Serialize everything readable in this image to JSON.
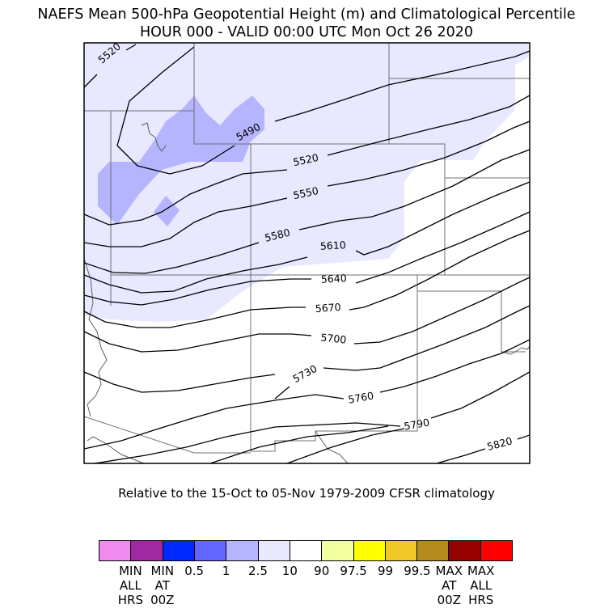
{
  "title": {
    "line1": "NAEFS Mean 500-hPa Geopotential Height (m) and Climatological Percentile",
    "line2": "HOUR 000 - VALID 00:00 UTC Mon Oct 26 2020"
  },
  "subtitle": "Relative to the 15-Oct to 05-Nov 1979-2009 CFSR climatology",
  "map": {
    "shading_colors": {
      "p2_5": "#b4b4ff",
      "p10": "#e8e8ff"
    },
    "contours": [
      {
        "label": "5490"
      },
      {
        "label": "5520"
      },
      {
        "label": "5520"
      },
      {
        "label": "5550"
      },
      {
        "label": "5580"
      },
      {
        "label": "5610"
      },
      {
        "label": "5640"
      },
      {
        "label": "5670"
      },
      {
        "label": "5700"
      },
      {
        "label": "5730"
      },
      {
        "label": "5760"
      },
      {
        "label": "5790"
      },
      {
        "label": "5820"
      }
    ]
  },
  "colorbar": {
    "swatches": [
      "#f08cf0",
      "#a028a0",
      "#0028ff",
      "#6464ff",
      "#b4b4ff",
      "#e8e8ff",
      "#ffffff",
      "#f2ffa0",
      "#ffff00",
      "#f0c828",
      "#b48c1e",
      "#960000",
      "#ff0000"
    ],
    "labels": [
      "",
      "MIN\nALL\nHRS",
      "MIN\nAT\n00Z",
      "0.5",
      "1",
      "2.5",
      "10",
      "90",
      "97.5",
      "99",
      "99.5",
      "MAX\nAT\n00Z",
      "MAX\nALL\nHRS"
    ]
  }
}
